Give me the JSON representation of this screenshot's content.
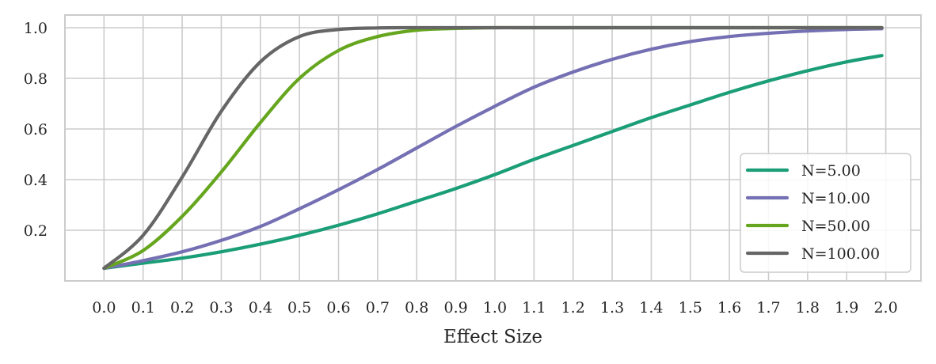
{
  "chart_data": {
    "type": "line",
    "title": "",
    "xlabel": "Effect Size",
    "ylabel": "",
    "xlim": [
      -0.1,
      2.09
    ],
    "ylim": [
      0.0,
      1.05
    ],
    "grid": true,
    "legend_position": "lower-right",
    "x_ticks": [
      0.0,
      0.1,
      0.2,
      0.3,
      0.4,
      0.5,
      0.6,
      0.7,
      0.8,
      0.9,
      1.0,
      1.1,
      1.2,
      1.3,
      1.4,
      1.5,
      1.6,
      1.7,
      1.8,
      1.9,
      2.0
    ],
    "x_tick_labels": [
      "0.0",
      "0.1",
      "0.2",
      "0.3",
      "0.4",
      "0.5",
      "0.6",
      "0.7",
      "0.8",
      "0.9",
      "1.0",
      "1.1",
      "1.2",
      "1.3",
      "1.4",
      "1.5",
      "1.6",
      "1.7",
      "1.8",
      "1.9",
      "2.0"
    ],
    "y_ticks": [
      0.2,
      0.4,
      0.6,
      0.8,
      1.0
    ],
    "y_tick_labels": [
      "0.2",
      "0.4",
      "0.6",
      "0.8",
      "1.0"
    ],
    "x": [
      0.0,
      0.1,
      0.2,
      0.3,
      0.4,
      0.5,
      0.6,
      0.7,
      0.8,
      0.9,
      1.0,
      1.1,
      1.2,
      1.3,
      1.4,
      1.5,
      1.6,
      1.7,
      1.8,
      1.9,
      1.99
    ],
    "series": [
      {
        "name": "N=5.00",
        "color": "#1b9e77",
        "values": [
          0.05,
          0.07,
          0.09,
          0.115,
          0.145,
          0.18,
          0.22,
          0.265,
          0.315,
          0.365,
          0.42,
          0.48,
          0.535,
          0.59,
          0.645,
          0.695,
          0.745,
          0.79,
          0.83,
          0.865,
          0.89
        ]
      },
      {
        "name": "N=10.00",
        "color": "#7570b3",
        "values": [
          0.05,
          0.08,
          0.115,
          0.16,
          0.215,
          0.285,
          0.36,
          0.44,
          0.525,
          0.61,
          0.69,
          0.765,
          0.825,
          0.875,
          0.915,
          0.945,
          0.965,
          0.978,
          0.987,
          0.993,
          0.996
        ]
      },
      {
        "name": "N=50.00",
        "color": "#66a61e",
        "values": [
          0.05,
          0.12,
          0.255,
          0.43,
          0.625,
          0.8,
          0.91,
          0.965,
          0.99,
          0.997,
          1.0,
          1.0,
          1.0,
          1.0,
          1.0,
          1.0,
          1.0,
          1.0,
          1.0,
          1.0,
          1.0
        ]
      },
      {
        "name": "N=100.00",
        "color": "#666666",
        "values": [
          0.05,
          0.18,
          0.41,
          0.67,
          0.865,
          0.965,
          0.993,
          0.999,
          1.0,
          1.0,
          1.0,
          1.0,
          1.0,
          1.0,
          1.0,
          1.0,
          1.0,
          1.0,
          1.0,
          1.0,
          1.0
        ]
      }
    ]
  }
}
